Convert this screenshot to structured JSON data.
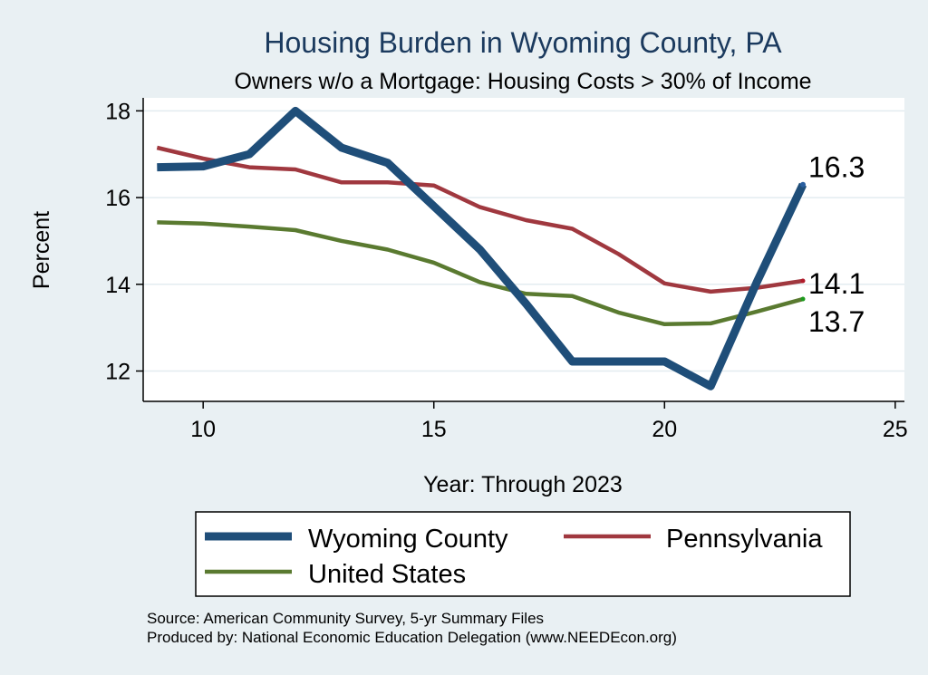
{
  "chart_data": {
    "type": "line",
    "title": "Housing Burden in Wyoming County, PA",
    "subtitle": "Owners w/o a Mortgage: Housing Costs > 30% of Income",
    "xlabel": "Year: Through 2023",
    "ylabel": "Percent",
    "xlim": [
      8.7,
      25.2
    ],
    "ylim": [
      11.3,
      18.3
    ],
    "xticks": [
      10,
      15,
      20,
      25
    ],
    "yticks": [
      12,
      14,
      16,
      18
    ],
    "grid": true,
    "legend_position": "bottom",
    "x": [
      9,
      10,
      11,
      12,
      13,
      14,
      15,
      16,
      17,
      18,
      19,
      20,
      21,
      22,
      23
    ],
    "series": [
      {
        "name": "Wyoming County",
        "color": "#1f4e79",
        "width": 9,
        "values": [
          16.7,
          16.72,
          17.0,
          18.0,
          17.15,
          16.8,
          15.8,
          14.8,
          13.55,
          12.22,
          12.22,
          12.22,
          11.65,
          14.05,
          16.3
        ],
        "end_label": "16.3"
      },
      {
        "name": "Pennsylvania",
        "color": "#a0383f",
        "width": 4.5,
        "values": [
          17.15,
          16.9,
          16.7,
          16.65,
          16.35,
          16.35,
          16.28,
          15.78,
          15.48,
          15.28,
          14.7,
          14.02,
          13.83,
          13.92,
          14.08
        ],
        "end_label": "14.1"
      },
      {
        "name": "United States",
        "color": "#5a7a30",
        "width": 4.5,
        "values": [
          15.43,
          15.4,
          15.33,
          15.25,
          15.0,
          14.8,
          14.5,
          14.05,
          13.78,
          13.73,
          13.35,
          13.08,
          13.1,
          13.37,
          13.66
        ],
        "end_label": "13.7"
      }
    ]
  },
  "legend": {
    "items": [
      {
        "label": "Wyoming County",
        "color": "#1f4e79",
        "width": 9
      },
      {
        "label": "Pennsylvania",
        "color": "#a0383f",
        "width": 4.5
      },
      {
        "label": "United States",
        "color": "#5a7a30",
        "width": 4.5
      }
    ]
  },
  "notes": {
    "source": "Source: American Community Survey, 5-yr Summary Files",
    "produced": "Produced by: National Economic Education Delegation (www.NEEDEcon.org)"
  },
  "colors": {
    "background": "#e9f0f3",
    "plot_background": "#ffffff",
    "grid": "#e3ecf0",
    "title": "#1b3a5e",
    "end_marker_us": "#1d9a1d"
  }
}
